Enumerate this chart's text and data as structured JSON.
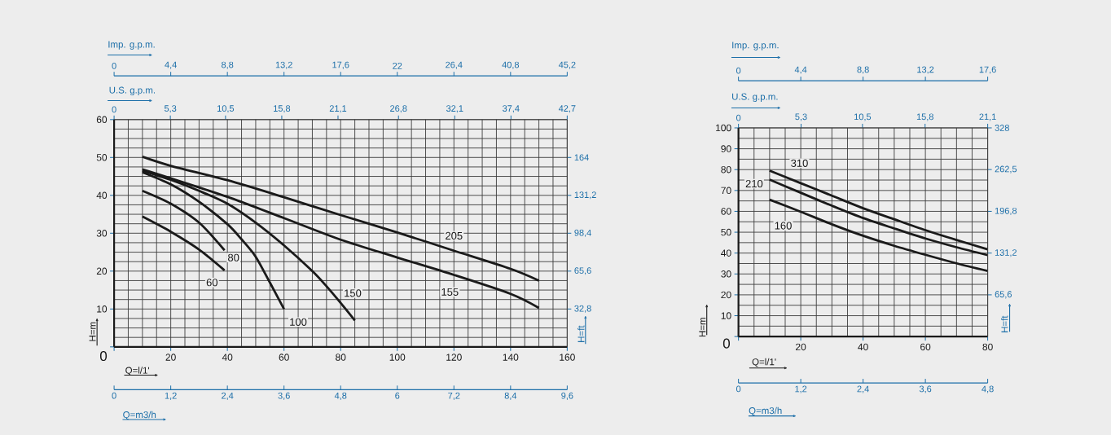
{
  "chart_data": [
    {
      "type": "line",
      "xlabel": "Q=l/1'",
      "ylabel": "H=m",
      "y2label": "H=ft",
      "x2label": "U.S. g.p.m.",
      "grid": true,
      "xlim": [
        0,
        160
      ],
      "xticks": [
        {
          "value": 0,
          "label": null
        },
        20,
        40,
        60,
        80,
        100,
        120,
        140,
        160
      ],
      "ylim": [
        0,
        60
      ],
      "yticks": [
        0,
        10,
        20,
        30,
        40,
        50,
        60
      ],
      "y2lim": [
        0,
        196.8
      ],
      "y2ticks": [
        {
          "value": 32.8,
          "label": "32,8"
        },
        {
          "value": 65.6,
          "label": "65,6"
        },
        {
          "value": 98.4,
          "label": "98,4"
        },
        {
          "value": 131.2,
          "label": "131,2"
        },
        164
      ],
      "x2lim": [
        0,
        42.7
      ],
      "x2ticks": [
        0,
        {
          "value": 5.3,
          "label": "5,3"
        },
        {
          "value": 10.5,
          "label": "10,5"
        },
        {
          "value": 15.8,
          "label": "15,8"
        },
        {
          "value": 21.1,
          "label": "21,1"
        },
        {
          "value": 26.8,
          "label": "26,8"
        },
        {
          "value": 32.1,
          "label": "32,1"
        },
        {
          "value": 37.4,
          "label": "37,4"
        },
        {
          "value": 42.7,
          "label": "42,7"
        }
      ],
      "annotations": [
        "Imp. g.p.m.",
        "0",
        "4,4",
        "8,8",
        "13,2",
        "17,6",
        "22",
        "26,4",
        "40,8",
        "45,2",
        "Q=m3/h",
        "0",
        "1,2",
        "2,4",
        "3,6",
        "4,8",
        "6",
        "7,2",
        "8,4",
        "9,6"
      ],
      "series": [
        {
          "name": "60",
          "color": "#1a1a1a",
          "x": [
            10,
            20,
            30,
            39
          ],
          "values": [
            34.4,
            30.4,
            25.7,
            20.2
          ]
        },
        {
          "name": "80",
          "color": "#1a1a1a",
          "x": [
            10,
            20,
            30,
            39
          ],
          "values": [
            41.2,
            37.8,
            32.8,
            25.5
          ]
        },
        {
          "name": "100",
          "color": "#1a1a1a",
          "x": [
            10,
            20,
            30,
            40,
            45,
            50,
            55,
            60
          ],
          "values": [
            46.1,
            42.9,
            38.3,
            32.4,
            28.4,
            23.8,
            17,
            10
          ]
        },
        {
          "name": "150",
          "color": "#1a1a1a",
          "x": [
            10,
            20,
            30,
            40,
            50,
            60,
            70,
            75,
            80,
            85
          ],
          "values": [
            46.5,
            44.1,
            41.2,
            37.8,
            32.8,
            26.8,
            20,
            16,
            11.6,
            7
          ]
        },
        {
          "name": "155",
          "color": "#1a1a1a",
          "x": [
            10,
            20,
            40,
            60,
            80,
            100,
            120,
            140,
            150
          ],
          "values": [
            46.9,
            44.5,
            39.6,
            34,
            28.3,
            23.6,
            19,
            14,
            10.3
          ]
        },
        {
          "name": "205",
          "color": "#1a1a1a",
          "x": [
            10,
            20,
            40,
            60,
            80,
            100,
            120,
            140,
            150
          ],
          "values": [
            50.2,
            47.8,
            44,
            39.5,
            34.8,
            30.2,
            25.4,
            20.6,
            17.5
          ]
        }
      ]
    },
    {
      "type": "line",
      "xlabel": "Q=l/1'",
      "ylabel": "H=m",
      "y2label": "H=ft",
      "x2label": "U.S. g.p.m.",
      "grid": true,
      "xlim": [
        0,
        80
      ],
      "xticks": [
        {
          "value": 0,
          "label": null
        },
        20,
        40,
        60,
        80
      ],
      "ylim": [
        0,
        100
      ],
      "yticks": [
        0,
        10,
        20,
        30,
        40,
        50,
        60,
        70,
        80,
        90,
        100
      ],
      "y2lim": [
        0,
        328
      ],
      "y2ticks": [
        {
          "value": 65.6,
          "label": "65,6"
        },
        {
          "value": 131.2,
          "label": "131,2"
        },
        {
          "value": 196.8,
          "label": "196,8"
        },
        {
          "value": 262.5,
          "label": "262,5"
        },
        328
      ],
      "x2lim": [
        0,
        21.1
      ],
      "x2ticks": [
        0,
        {
          "value": 5.3,
          "label": "5,3"
        },
        {
          "value": 10.5,
          "label": "10,5"
        },
        {
          "value": 15.8,
          "label": "15,8"
        },
        {
          "value": 21.1,
          "label": "21,1"
        }
      ],
      "annotations": [
        "Imp. g.p.m.",
        "0",
        "4,4",
        "8,8",
        "13,2",
        "17,6",
        "Q=m3/h",
        "0",
        "1,2",
        "2,4",
        "3,6",
        "4,8"
      ],
      "series": [
        {
          "name": "160",
          "color": "#1a1a1a",
          "x": [
            10,
            20,
            30,
            40,
            50,
            60,
            70,
            80
          ],
          "values": [
            65.6,
            59.8,
            53.8,
            48.3,
            43.5,
            39.2,
            35.1,
            31.4
          ]
        },
        {
          "name": "210",
          "color": "#1a1a1a",
          "x": [
            10,
            20,
            30,
            40,
            50,
            60,
            70,
            80
          ],
          "values": [
            75.2,
            68.9,
            62.7,
            56.8,
            51.8,
            47,
            42.8,
            39
          ]
        },
        {
          "name": "310",
          "color": "#1a1a1a",
          "x": [
            10,
            20,
            30,
            40,
            50,
            60,
            70,
            80
          ],
          "values": [
            79.5,
            73.5,
            67.5,
            61.5,
            56.2,
            51,
            46.3,
            41.8
          ]
        }
      ]
    }
  ]
}
